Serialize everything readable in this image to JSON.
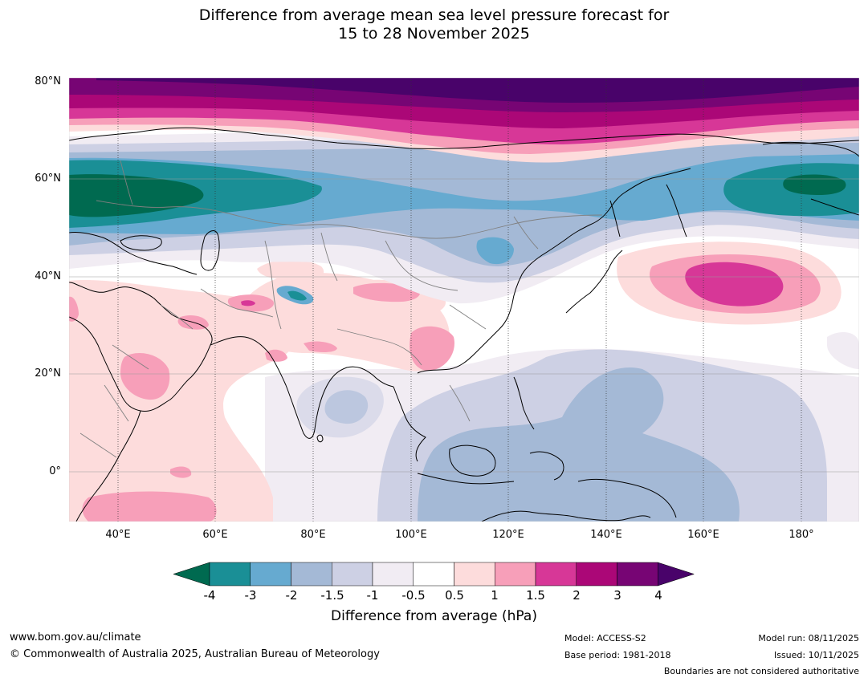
{
  "title": {
    "line1": "Difference from average mean sea level pressure forecast for",
    "line2": "15 to 28 November 2025"
  },
  "map": {
    "lat_ticks": [
      "80°N",
      "60°N",
      "40°N",
      "20°N",
      "0°"
    ],
    "lon_ticks": [
      "40°E",
      "60°E",
      "80°E",
      "100°E",
      "120°E",
      "140°E",
      "160°E",
      "180°"
    ],
    "extent": {
      "lon_min": 30,
      "lon_max": 191,
      "lat_min": -10,
      "lat_max": 80
    },
    "colors": {
      "ocean_water_like": "#ffffff",
      "coast": "#000000",
      "border": "#808080"
    }
  },
  "colorbar": {
    "tick_labels": [
      "-4",
      "-3",
      "-2",
      "-1.5",
      "-1",
      "-0.5",
      "0.5",
      "1",
      "1.5",
      "2",
      "3",
      "4"
    ],
    "colors": [
      "#006a50",
      "#1a8f96",
      "#66aad0",
      "#a4b9d6",
      "#cdd0e4",
      "#f1ecf3",
      "#ffffff",
      "#fddcdc",
      "#f79fb9",
      "#d73797",
      "#ab0777",
      "#770574",
      "#49036a"
    ],
    "label": "Difference from average (hPa)"
  },
  "footer": {
    "website": "www.bom.gov.au/climate",
    "copyright": "© Commonwealth of Australia 2025, Australian Bureau of Meteorology",
    "model": "Model: ACCESS-S2",
    "base_period": "Base period: 1981-2018",
    "model_run": "Model run: 08/11/2025",
    "issued": "Issued: 10/11/2025",
    "disclaimer": "Boundaries are not considered authoritative"
  }
}
